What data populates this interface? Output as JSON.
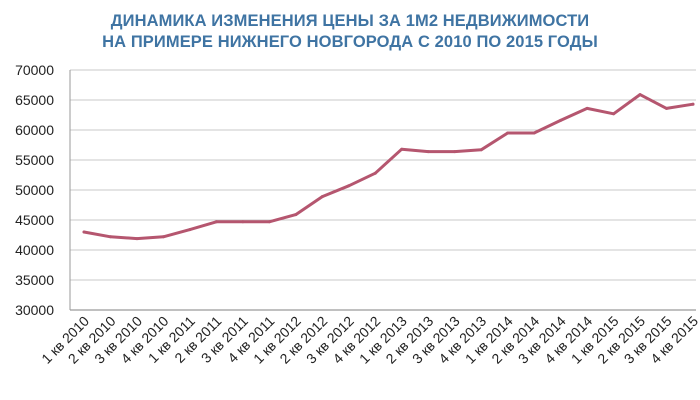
{
  "chart_data": {
    "type": "line",
    "title": "ДИНАМИКА ИЗМЕНЕНИЯ ЦЕНЫ ЗА 1М2 НЕДВИЖИМОСТИ НА ПРИМЕРЕ НИЖНЕГО НОВГОРОДА С 2010 ПО 2015 ГОДЫ",
    "title_lines": [
      "ДИНАМИКА ИЗМЕНЕНИЯ ЦЕНЫ ЗА 1М2 НЕДВИЖИМОСТИ",
      "НА ПРИМЕРЕ НИЖНЕГО НОВГОРОДА С 2010 ПО 2015 ГОДЫ"
    ],
    "xlabel": "",
    "ylabel": "",
    "categories": [
      "1 кв 2010",
      "2 кв 2010",
      "3 кв 2010",
      "4 кв 2010",
      "1 кв 2011",
      "2 кв 2011",
      "3 кв 2011",
      "4 кв 2011",
      "1 кв 2012",
      "2 кв 2012",
      "3 кв 2012",
      "4 кв 2012",
      "1 кв 2013",
      "2 кв 2013",
      "3 кв 2013",
      "4 кв 2013",
      "1 кв 2014",
      "2 кв 2014",
      "3 кв 2014",
      "4 кв 2014",
      "1 кв 2015",
      "2 кв 2015",
      "3 кв 2015",
      "4 кв 2015"
    ],
    "series": [
      {
        "values": [
          43000,
          42200,
          41900,
          42200,
          43400,
          44700,
          44700,
          44700,
          45900,
          48900,
          50700,
          52800,
          56800,
          56400,
          56400,
          56700,
          59500,
          59500,
          61600,
          63600,
          62700,
          65900,
          63600,
          64300
        ]
      }
    ],
    "ylim": [
      30000,
      70000
    ],
    "yticks": [
      30000,
      35000,
      40000,
      45000,
      50000,
      55000,
      60000,
      65000,
      70000
    ],
    "grid": true,
    "legend": "none",
    "colors": {
      "line": "#b5566f",
      "title": "#3f74a3",
      "grid": "#c8c8c8",
      "axis": "#9a9a9a",
      "text": "#222222"
    }
  }
}
